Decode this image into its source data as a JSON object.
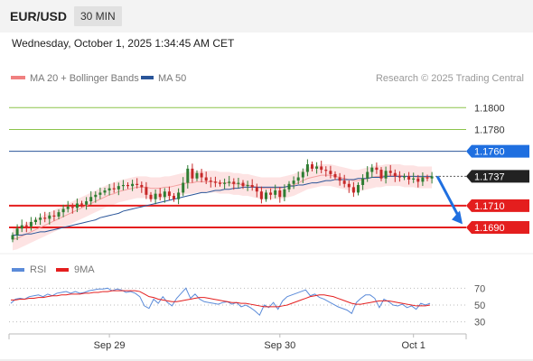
{
  "header": {
    "symbol": "EUR/USD",
    "timeframe": "30 MIN"
  },
  "datetime": "Wednesday, October 1, 2025 1:34:45 AM CET",
  "legend": {
    "items": [
      {
        "label": "MA 20 + Bollinger Bands",
        "color": "#f08080"
      },
      {
        "label": "MA 50",
        "color": "#2a5599"
      }
    ],
    "copyright": "Research © 2025 Trading Central"
  },
  "levels": [
    {
      "value": 1.18,
      "label": "1.1800",
      "color": "#8bc34a",
      "style": "thin",
      "tag": false
    },
    {
      "value": 1.178,
      "label": "1.1780",
      "color": "#8bc34a",
      "style": "thin",
      "tag": false
    },
    {
      "value": 1.176,
      "label": "1.1760",
      "color": "#2a5599",
      "style": "thin",
      "tag": true,
      "tag_color": "#1f6fe0"
    },
    {
      "value": 1.171,
      "label": "1.1710",
      "color": "#e41e1e",
      "style": "thick",
      "tag": true,
      "tag_color": "#e41e1e"
    },
    {
      "value": 1.169,
      "label": "1.1690",
      "color": "#e41e1e",
      "style": "thick",
      "tag": true,
      "tag_color": "#e41e1e"
    }
  ],
  "current_price": {
    "value": 1.1737,
    "label": "1.1737",
    "color": "#222222"
  },
  "rsi": {
    "legend": [
      {
        "label": "RSI",
        "color": "#5b8bd9"
      },
      {
        "label": "9MA",
        "color": "#e41e1e"
      }
    ],
    "ticks": [
      "70",
      "50",
      "30"
    ]
  },
  "xaxis": {
    "labels": [
      "Sep 29",
      "Sep 30",
      "Oct 1"
    ]
  },
  "colors": {
    "bull": "#2e7d32",
    "bear": "#c62828",
    "band": "#fde0e0",
    "ma20": "#f4a0a0",
    "ma50": "#2a5599",
    "arrow": "#1f6fe0"
  },
  "chart_data": {
    "type": "candlestick",
    "title": "",
    "ylim": [
      1.1666,
      1.1816
    ],
    "close": [
      1.1683,
      1.1689,
      1.1692,
      1.1691,
      1.1695,
      1.1697,
      1.1699,
      1.1698,
      1.1701,
      1.17,
      1.1704,
      1.1707,
      1.1709,
      1.1708,
      1.1712,
      1.1711,
      1.1714,
      1.1718,
      1.172,
      1.1722,
      1.1724,
      1.1726,
      1.1725,
      1.1728,
      1.1729,
      1.1728,
      1.173,
      1.1729,
      1.1727,
      1.172,
      1.1716,
      1.1721,
      1.1718,
      1.1723,
      1.1719,
      1.1716,
      1.1722,
      1.1731,
      1.1744,
      1.1735,
      1.174,
      1.1736,
      1.1733,
      1.1732,
      1.1731,
      1.173,
      1.1731,
      1.1732,
      1.173,
      1.1731,
      1.1728,
      1.1729,
      1.1727,
      1.1723,
      1.1716,
      1.1722,
      1.172,
      1.1724,
      1.1718,
      1.1725,
      1.173,
      1.1733,
      1.1736,
      1.1741,
      1.1748,
      1.1744,
      1.1746,
      1.1743,
      1.1742,
      1.1739,
      1.1736,
      1.1733,
      1.173,
      1.1727,
      1.1722,
      1.1729,
      1.1735,
      1.1741,
      1.1745,
      1.1743,
      1.1735,
      1.1742,
      1.174,
      1.1737,
      1.1736,
      1.1737,
      1.1734,
      1.1735,
      1.1732,
      1.1736,
      1.1735,
      1.1737
    ],
    "ma20": [
      1.1679,
      1.168,
      1.1682,
      1.1684,
      1.1686,
      1.1688,
      1.169,
      1.1692,
      1.1694,
      1.1696,
      1.1698,
      1.17,
      1.1702,
      1.1704,
      1.1706,
      1.1708,
      1.171,
      1.1712,
      1.1714,
      1.1716,
      1.1718,
      1.172,
      1.1721,
      1.1723,
      1.1724,
      1.1725,
      1.1726,
      1.1727,
      1.1727,
      1.1727,
      1.1726,
      1.1726,
      1.1726,
      1.1727,
      1.1727,
      1.1728,
      1.1729,
      1.173,
      1.1731,
      1.1731,
      1.1732,
      1.1732,
      1.1732,
      1.1732,
      1.1732,
      1.1731,
      1.1731,
      1.1731,
      1.173,
      1.173,
      1.1729,
      1.1729,
      1.1728,
      1.1727,
      1.1726,
      1.1726,
      1.1726,
      1.1726,
      1.1726,
      1.1727,
      1.1728,
      1.1729,
      1.1731,
      1.1733,
      1.1735,
      1.1736,
      1.1737,
      1.1738,
      1.1738,
      1.1738,
      1.1737,
      1.1736,
      1.1735,
      1.1734,
      1.1733,
      1.1733,
      1.1734,
      1.1735,
      1.1736,
      1.1737,
      1.1737,
      1.1738,
      1.1738,
      1.1738,
      1.1738,
      1.1737,
      1.1737,
      1.1737,
      1.1736,
      1.1736,
      1.1736,
      1.1736
    ],
    "ma50": [
      1.1683,
      1.1683,
      1.1683,
      1.1684,
      1.1684,
      1.1685,
      1.1686,
      1.1686,
      1.1687,
      1.1688,
      1.1689,
      1.169,
      1.1691,
      1.1692,
      1.1693,
      1.1694,
      1.1695,
      1.1696,
      1.1697,
      1.1699,
      1.17,
      1.1701,
      1.1702,
      1.1703,
      1.1705,
      1.1706,
      1.1707,
      1.1708,
      1.1709,
      1.171,
      1.1711,
      1.1712,
      1.1713,
      1.1714,
      1.1715,
      1.1716,
      1.1717,
      1.1718,
      1.1719,
      1.172,
      1.1721,
      1.1722,
      1.1722,
      1.1723,
      1.1724,
      1.1724,
      1.1725,
      1.1725,
      1.1726,
      1.1726,
      1.1727,
      1.1727,
      1.1727,
      1.1727,
      1.1727,
      1.1727,
      1.1727,
      1.1727,
      1.1727,
      1.1727,
      1.1728,
      1.1728,
      1.1729,
      1.1729,
      1.173,
      1.1731,
      1.1731,
      1.1732,
      1.1733,
      1.1733,
      1.1734,
      1.1734,
      1.1734,
      1.1734,
      1.1734,
      1.1735,
      1.1735,
      1.1735,
      1.1736,
      1.1736,
      1.1736,
      1.1737,
      1.1737,
      1.1737,
      1.1737,
      1.1737,
      1.1737,
      1.1737,
      1.1737,
      1.1737,
      1.1737,
      1.1737
    ],
    "band_width": 0.001,
    "rsi": [
      52,
      57,
      58,
      57,
      60,
      61,
      62,
      60,
      63,
      61,
      64,
      65,
      66,
      64,
      66,
      64,
      65,
      67,
      68,
      69,
      69,
      70,
      67,
      69,
      68,
      65,
      66,
      64,
      60,
      49,
      46,
      57,
      52,
      60,
      53,
      49,
      58,
      64,
      70,
      58,
      63,
      57,
      54,
      53,
      52,
      51,
      53,
      54,
      51,
      53,
      48,
      50,
      47,
      43,
      38,
      50,
      47,
      53,
      45,
      55,
      60,
      62,
      64,
      66,
      68,
      61,
      63,
      59,
      57,
      54,
      51,
      48,
      46,
      44,
      40,
      53,
      58,
      62,
      62,
      58,
      47,
      57,
      54,
      50,
      49,
      51,
      47,
      49,
      45,
      52,
      50,
      52
    ],
    "rsi_ma": [
      56,
      56,
      57,
      57,
      58,
      58,
      59,
      59,
      60,
      61,
      61,
      62,
      62,
      63,
      63,
      63,
      64,
      64,
      65,
      65,
      66,
      66,
      67,
      67,
      67,
      67,
      67,
      67,
      66,
      63,
      60,
      59,
      57,
      56,
      55,
      54,
      54,
      55,
      56,
      57,
      58,
      59,
      59,
      58,
      57,
      56,
      55,
      54,
      53,
      53,
      52,
      52,
      51,
      50,
      49,
      48,
      48,
      48,
      48,
      49,
      50,
      52,
      54,
      56,
      58,
      60,
      61,
      62,
      62,
      61,
      60,
      58,
      56,
      54,
      52,
      51,
      51,
      52,
      53,
      54,
      55,
      55,
      55,
      54,
      53,
      52,
      51,
      50,
      49,
      49,
      49,
      50
    ],
    "xlabels": [
      "Sep 29",
      "Sep 30",
      "Oct 1"
    ],
    "xlabel_index": [
      21,
      58,
      87
    ],
    "projection": {
      "from": 1.1737,
      "to": 1.1693
    },
    "rsi_ylim": [
      20,
      80
    ]
  }
}
